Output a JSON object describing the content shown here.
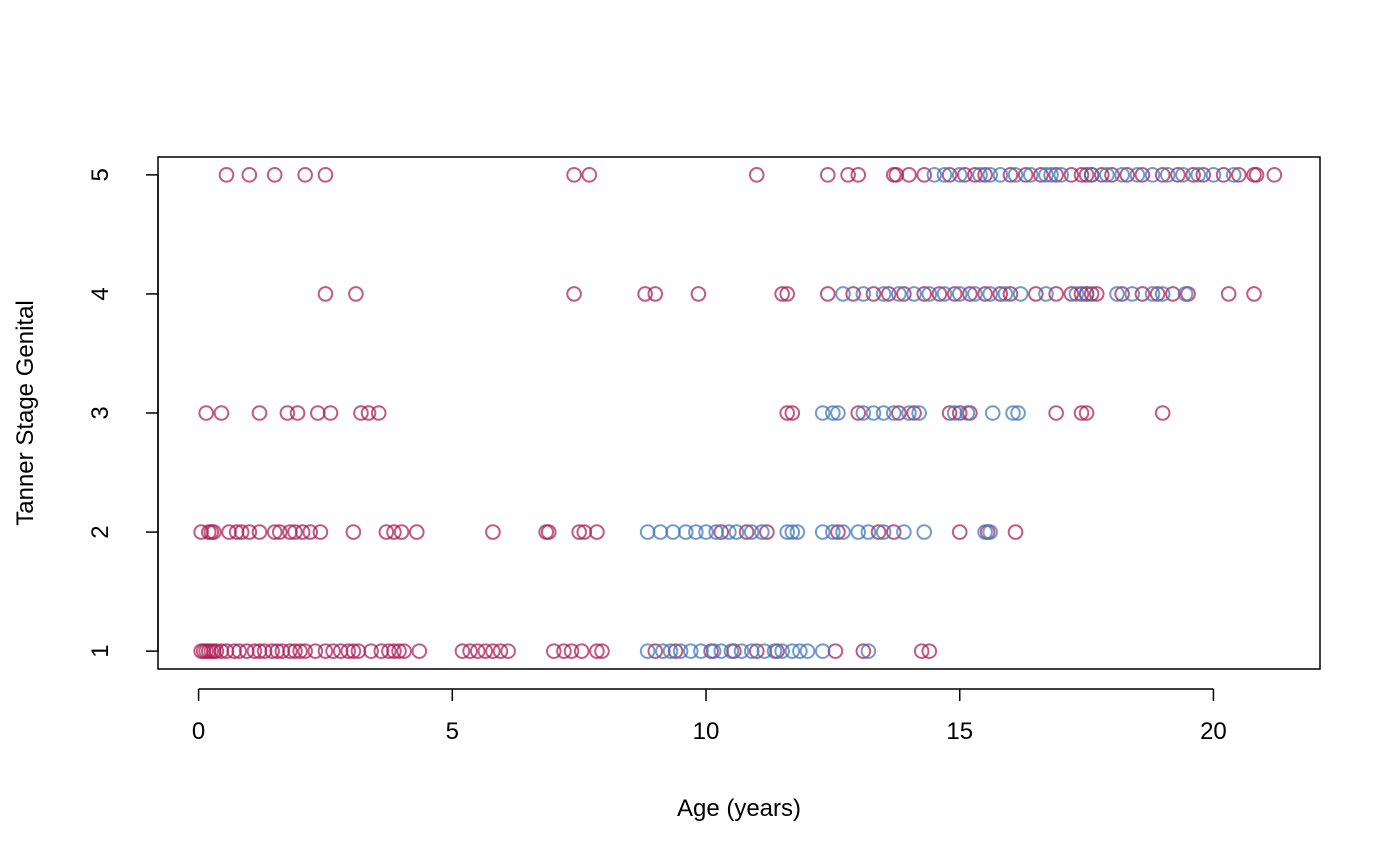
{
  "chart_data": {
    "type": "scatter",
    "title": "",
    "xlabel": "Age (years)",
    "ylabel": "Tanner Stage Genital",
    "xlim": [
      -0.8,
      22.1
    ],
    "ylim": [
      0.85,
      5.15
    ],
    "xticks": [
      "0",
      "5",
      "10",
      "15",
      "20"
    ],
    "yticks": [
      "1",
      "2",
      "3",
      "4",
      "5"
    ],
    "grid": false,
    "legend": "none",
    "colors": [
      "#ab1a52",
      "#3c74b8"
    ],
    "series": [
      {
        "color": "#ab1a52",
        "points": [
          [
            0.55,
            5
          ],
          [
            1.0,
            5
          ],
          [
            1.5,
            5
          ],
          [
            2.1,
            5
          ],
          [
            2.5,
            5
          ],
          [
            7.4,
            5
          ],
          [
            7.7,
            5
          ],
          [
            11.0,
            5
          ],
          [
            12.4,
            5
          ],
          [
            12.8,
            5
          ],
          [
            13.0,
            5
          ],
          [
            13.7,
            5
          ],
          [
            13.75,
            5
          ],
          [
            14.0,
            5
          ],
          [
            14.3,
            5
          ],
          [
            14.8,
            5
          ],
          [
            15.1,
            5
          ],
          [
            15.3,
            5
          ],
          [
            15.5,
            5
          ],
          [
            16.0,
            5
          ],
          [
            16.3,
            5
          ],
          [
            16.6,
            5
          ],
          [
            16.9,
            5
          ],
          [
            17.2,
            5
          ],
          [
            17.4,
            5
          ],
          [
            17.5,
            5
          ],
          [
            17.6,
            5
          ],
          [
            17.8,
            5
          ],
          [
            18.0,
            5
          ],
          [
            18.3,
            5
          ],
          [
            18.6,
            5
          ],
          [
            19.0,
            5
          ],
          [
            19.3,
            5
          ],
          [
            19.6,
            5
          ],
          [
            19.8,
            5
          ],
          [
            20.2,
            5
          ],
          [
            20.5,
            5
          ],
          [
            20.8,
            5
          ],
          [
            20.85,
            5
          ],
          [
            21.2,
            5
          ],
          [
            2.5,
            4
          ],
          [
            3.1,
            4
          ],
          [
            7.4,
            4
          ],
          [
            8.8,
            4
          ],
          [
            9.0,
            4
          ],
          [
            9.85,
            4
          ],
          [
            11.5,
            4
          ],
          [
            11.6,
            4
          ],
          [
            12.4,
            4
          ],
          [
            12.9,
            4
          ],
          [
            13.3,
            4
          ],
          [
            13.6,
            4
          ],
          [
            13.9,
            4
          ],
          [
            14.3,
            4
          ],
          [
            14.6,
            4
          ],
          [
            14.9,
            4
          ],
          [
            15.2,
            4
          ],
          [
            15.5,
            4
          ],
          [
            15.8,
            4
          ],
          [
            16.0,
            4
          ],
          [
            16.5,
            4
          ],
          [
            16.9,
            4
          ],
          [
            17.2,
            4
          ],
          [
            17.4,
            4
          ],
          [
            17.5,
            4
          ],
          [
            17.6,
            4
          ],
          [
            17.7,
            4
          ],
          [
            18.2,
            4
          ],
          [
            18.6,
            4
          ],
          [
            18.9,
            4
          ],
          [
            19.2,
            4
          ],
          [
            19.5,
            4
          ],
          [
            20.3,
            4
          ],
          [
            20.8,
            4
          ],
          [
            0.15,
            3
          ],
          [
            0.45,
            3
          ],
          [
            1.2,
            3
          ],
          [
            1.75,
            3
          ],
          [
            1.95,
            3
          ],
          [
            2.35,
            3
          ],
          [
            2.6,
            3
          ],
          [
            3.2,
            3
          ],
          [
            3.35,
            3
          ],
          [
            3.55,
            3
          ],
          [
            11.6,
            3
          ],
          [
            11.7,
            3
          ],
          [
            13.0,
            3
          ],
          [
            13.8,
            3
          ],
          [
            14.1,
            3
          ],
          [
            14.8,
            3
          ],
          [
            15.0,
            3
          ],
          [
            15.2,
            3
          ],
          [
            16.9,
            3
          ],
          [
            17.4,
            3
          ],
          [
            17.5,
            3
          ],
          [
            19.0,
            3
          ],
          [
            0.05,
            2
          ],
          [
            0.2,
            2
          ],
          [
            0.25,
            2
          ],
          [
            0.3,
            2
          ],
          [
            0.6,
            2
          ],
          [
            0.75,
            2
          ],
          [
            0.85,
            2
          ],
          [
            1.0,
            2
          ],
          [
            1.2,
            2
          ],
          [
            1.5,
            2
          ],
          [
            1.6,
            2
          ],
          [
            1.8,
            2
          ],
          [
            1.9,
            2
          ],
          [
            2.05,
            2
          ],
          [
            2.2,
            2
          ],
          [
            2.4,
            2
          ],
          [
            3.05,
            2
          ],
          [
            3.7,
            2
          ],
          [
            3.85,
            2
          ],
          [
            4.0,
            2
          ],
          [
            4.3,
            2
          ],
          [
            5.8,
            2
          ],
          [
            6.85,
            2
          ],
          [
            6.9,
            2
          ],
          [
            7.5,
            2
          ],
          [
            7.6,
            2
          ],
          [
            7.85,
            2
          ],
          [
            10.3,
            2
          ],
          [
            10.8,
            2
          ],
          [
            11.2,
            2
          ],
          [
            12.6,
            2
          ],
          [
            13.4,
            2
          ],
          [
            13.7,
            2
          ],
          [
            15.0,
            2
          ],
          [
            15.55,
            2
          ],
          [
            16.1,
            2
          ],
          [
            0.05,
            1
          ],
          [
            0.1,
            1
          ],
          [
            0.15,
            1
          ],
          [
            0.2,
            1
          ],
          [
            0.25,
            1
          ],
          [
            0.3,
            1
          ],
          [
            0.35,
            1
          ],
          [
            0.45,
            1
          ],
          [
            0.55,
            1
          ],
          [
            0.7,
            1
          ],
          [
            0.8,
            1
          ],
          [
            0.95,
            1
          ],
          [
            1.1,
            1
          ],
          [
            1.2,
            1
          ],
          [
            1.3,
            1
          ],
          [
            1.45,
            1
          ],
          [
            1.55,
            1
          ],
          [
            1.65,
            1
          ],
          [
            1.8,
            1
          ],
          [
            1.9,
            1
          ],
          [
            2.0,
            1
          ],
          [
            2.1,
            1
          ],
          [
            2.3,
            1
          ],
          [
            2.5,
            1
          ],
          [
            2.65,
            1
          ],
          [
            2.8,
            1
          ],
          [
            2.95,
            1
          ],
          [
            3.05,
            1
          ],
          [
            3.15,
            1
          ],
          [
            3.4,
            1
          ],
          [
            3.6,
            1
          ],
          [
            3.75,
            1
          ],
          [
            3.85,
            1
          ],
          [
            3.95,
            1
          ],
          [
            4.05,
            1
          ],
          [
            4.35,
            1
          ],
          [
            5.2,
            1
          ],
          [
            5.35,
            1
          ],
          [
            5.5,
            1
          ],
          [
            5.65,
            1
          ],
          [
            5.8,
            1
          ],
          [
            5.95,
            1
          ],
          [
            6.1,
            1
          ],
          [
            7.0,
            1
          ],
          [
            7.2,
            1
          ],
          [
            7.35,
            1
          ],
          [
            7.55,
            1
          ],
          [
            7.85,
            1
          ],
          [
            7.95,
            1
          ],
          [
            9.0,
            1
          ],
          [
            9.4,
            1
          ],
          [
            10.1,
            1
          ],
          [
            10.55,
            1
          ],
          [
            11.0,
            1
          ],
          [
            11.4,
            1
          ],
          [
            12.55,
            1
          ],
          [
            13.1,
            1
          ],
          [
            14.25,
            1
          ],
          [
            14.4,
            1
          ]
        ]
      },
      {
        "color": "#3c74b8",
        "points": [
          [
            14.5,
            5
          ],
          [
            14.7,
            5
          ],
          [
            15.0,
            5
          ],
          [
            15.4,
            5
          ],
          [
            15.6,
            5
          ],
          [
            15.8,
            5
          ],
          [
            16.1,
            5
          ],
          [
            16.4,
            5
          ],
          [
            16.7,
            5
          ],
          [
            16.8,
            5
          ],
          [
            17.0,
            5
          ],
          [
            17.6,
            5
          ],
          [
            17.9,
            5
          ],
          [
            18.2,
            5
          ],
          [
            18.5,
            5
          ],
          [
            18.8,
            5
          ],
          [
            19.1,
            5
          ],
          [
            19.4,
            5
          ],
          [
            19.7,
            5
          ],
          [
            20.0,
            5
          ],
          [
            20.4,
            5
          ],
          [
            12.7,
            4
          ],
          [
            13.1,
            4
          ],
          [
            13.5,
            4
          ],
          [
            13.8,
            4
          ],
          [
            14.1,
            4
          ],
          [
            14.4,
            4
          ],
          [
            14.7,
            4
          ],
          [
            15.0,
            4
          ],
          [
            15.3,
            4
          ],
          [
            15.6,
            4
          ],
          [
            15.9,
            4
          ],
          [
            16.2,
            4
          ],
          [
            16.7,
            4
          ],
          [
            17.3,
            4
          ],
          [
            17.5,
            4
          ],
          [
            18.1,
            4
          ],
          [
            18.4,
            4
          ],
          [
            18.8,
            4
          ],
          [
            19.0,
            4
          ],
          [
            19.45,
            4
          ],
          [
            12.3,
            3
          ],
          [
            12.5,
            3
          ],
          [
            12.6,
            3
          ],
          [
            13.1,
            3
          ],
          [
            13.3,
            3
          ],
          [
            13.5,
            3
          ],
          [
            13.7,
            3
          ],
          [
            14.0,
            3
          ],
          [
            14.2,
            3
          ],
          [
            14.9,
            3
          ],
          [
            15.15,
            3
          ],
          [
            15.65,
            3
          ],
          [
            16.05,
            3
          ],
          [
            16.15,
            3
          ],
          [
            8.85,
            2
          ],
          [
            9.1,
            2
          ],
          [
            9.35,
            2
          ],
          [
            9.6,
            2
          ],
          [
            9.8,
            2
          ],
          [
            10.0,
            2
          ],
          [
            10.2,
            2
          ],
          [
            10.45,
            2
          ],
          [
            10.6,
            2
          ],
          [
            10.9,
            2
          ],
          [
            11.1,
            2
          ],
          [
            11.6,
            2
          ],
          [
            11.7,
            2
          ],
          [
            11.8,
            2
          ],
          [
            12.3,
            2
          ],
          [
            12.5,
            2
          ],
          [
            12.7,
            2
          ],
          [
            13.0,
            2
          ],
          [
            13.2,
            2
          ],
          [
            13.5,
            2
          ],
          [
            13.9,
            2
          ],
          [
            14.3,
            2
          ],
          [
            15.5,
            2
          ],
          [
            15.6,
            2
          ],
          [
            8.85,
            1
          ],
          [
            9.15,
            1
          ],
          [
            9.3,
            1
          ],
          [
            9.5,
            1
          ],
          [
            9.7,
            1
          ],
          [
            9.9,
            1
          ],
          [
            10.15,
            1
          ],
          [
            10.3,
            1
          ],
          [
            10.5,
            1
          ],
          [
            10.7,
            1
          ],
          [
            10.9,
            1
          ],
          [
            11.15,
            1
          ],
          [
            11.35,
            1
          ],
          [
            11.5,
            1
          ],
          [
            11.7,
            1
          ],
          [
            11.85,
            1
          ],
          [
            12.0,
            1
          ],
          [
            12.3,
            1
          ],
          [
            13.2,
            1
          ]
        ]
      }
    ]
  }
}
